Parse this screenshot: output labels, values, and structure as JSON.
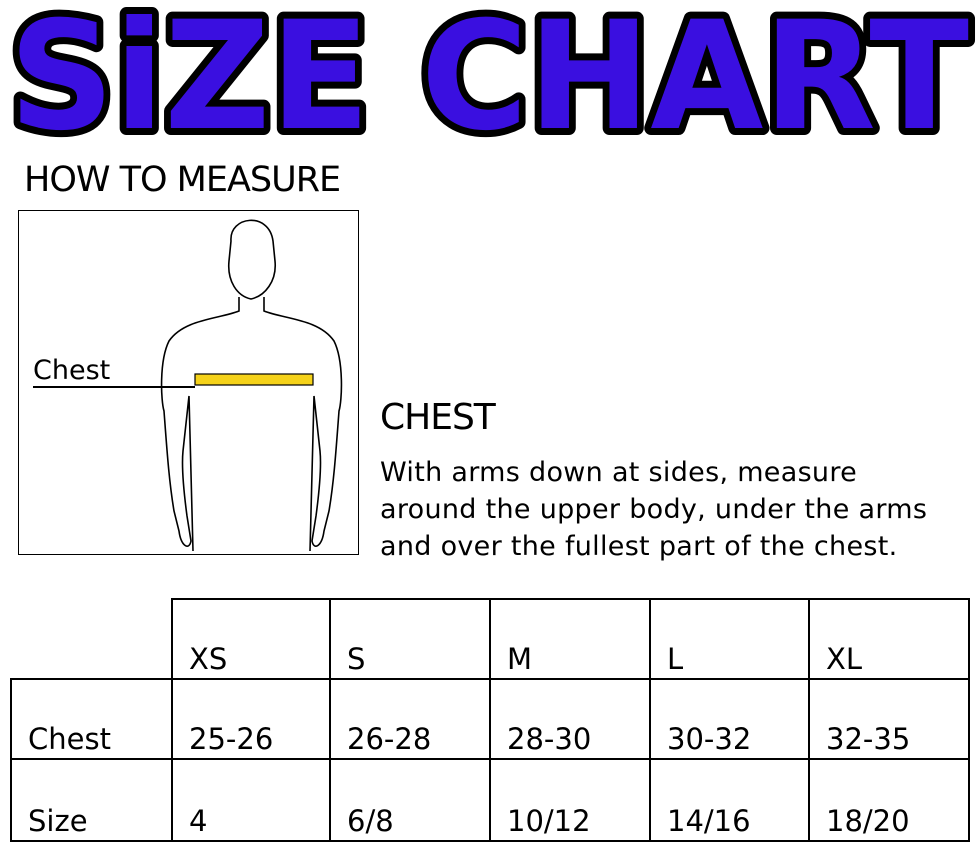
{
  "title": "SiZE CHART",
  "title_color": "#3A0FE0",
  "how_to_measure": "HOW TO MEASURE",
  "figure": {
    "chest_label": "Chest",
    "tape_color": "#F5D21A"
  },
  "chest_section": {
    "heading": "CHEST",
    "description_lines": [
      "With arms down at sides, measure",
      "around the upper body, under the arms",
      "and over the fullest part of the chest."
    ]
  },
  "table": {
    "sizes": [
      "XS",
      "S",
      "M",
      "L",
      "XL"
    ],
    "rows": [
      {
        "label": "Chest",
        "values": [
          "25-26",
          "26-28",
          "28-30",
          "30-32",
          "32-35"
        ]
      },
      {
        "label": "Size",
        "values": [
          "4",
          "6/8",
          "10/12",
          "14/16",
          "18/20"
        ]
      }
    ]
  }
}
